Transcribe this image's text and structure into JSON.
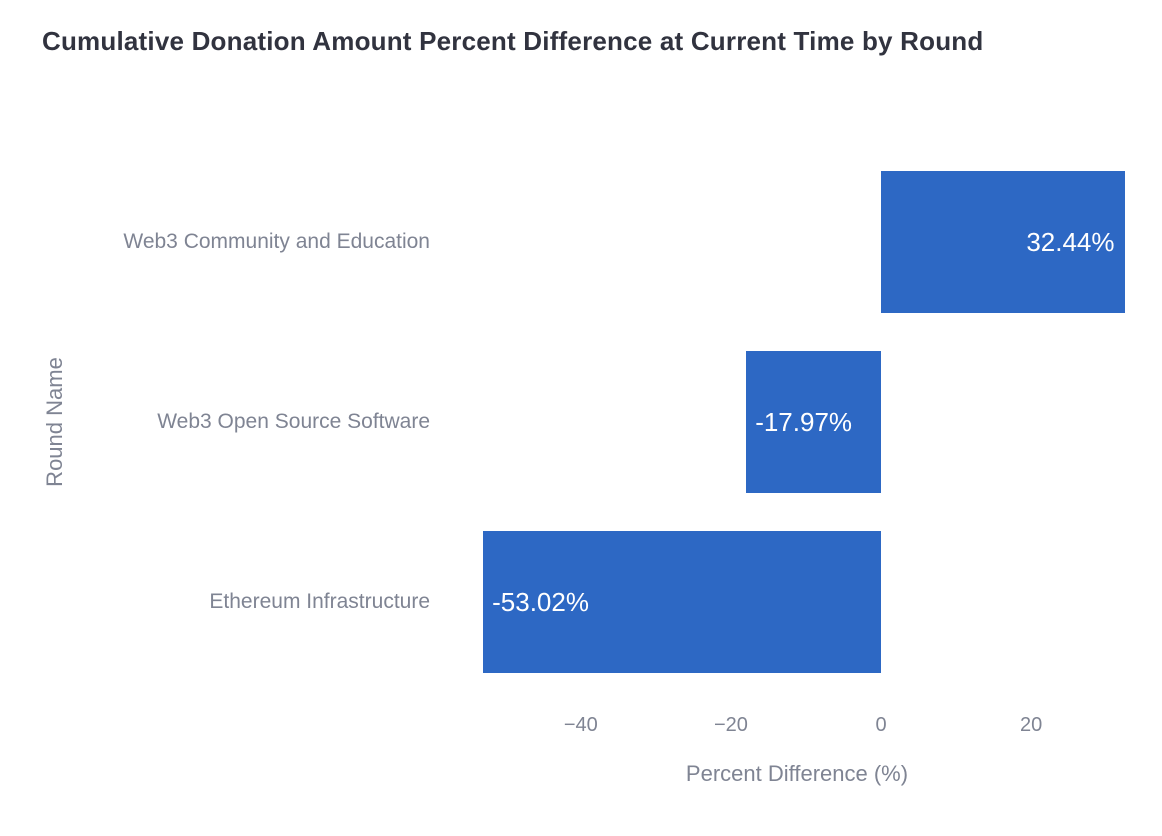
{
  "chart_data": {
    "type": "bar",
    "orientation": "horizontal",
    "title": "Cumulative Donation Amount Percent Difference at Current Time by Round",
    "xlabel": "Percent Difference (%)",
    "ylabel": "Round Name",
    "categories": [
      "Web3 Community and Education",
      "Web3 Open Source Software",
      "Ethereum Infrastructure"
    ],
    "values": [
      32.44,
      -17.97,
      -53.02
    ],
    "value_labels": [
      "32.44%",
      "-17.97%",
      "-53.02%"
    ],
    "xlim": [
      -56.9,
      34.5
    ],
    "xticks": {
      "values": [
        -40,
        -20,
        0,
        20
      ],
      "labels": [
        "−40",
        "−20",
        "0",
        "20"
      ]
    },
    "grid": false,
    "legend": "none",
    "bar_color": "#2d68c4",
    "bar_label_color": "#ffffff",
    "axis_text_color": "#7f8493",
    "title_color": "#31333f",
    "background": "#ffffff"
  }
}
